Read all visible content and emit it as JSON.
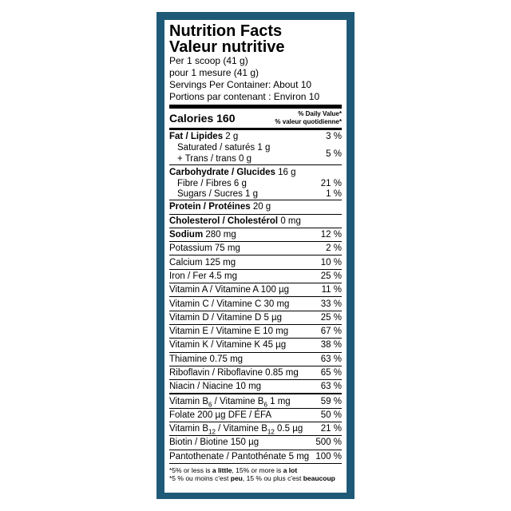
{
  "header": {
    "title_en": "Nutrition Facts",
    "title_fr": "Valeur nutritive",
    "serving_en": "Per 1 scoop (41 g)",
    "serving_fr": "pour 1 mesure (41 g)",
    "servings_en": "Servings Per Container: About 10",
    "servings_fr": "Portions par contenant : Environ 10"
  },
  "calories": {
    "label": "Calories 160",
    "dv_en": "% Daily Value*",
    "dv_fr": "% valeur quotidienne*"
  },
  "fat": {
    "name": "Fat / Lipides",
    "amount": "2 g",
    "dv": "3 %",
    "saturated": "Saturated / saturés 1 g",
    "trans": "+ Trans / trans 0 g",
    "sat_trans_dv": "5 %"
  },
  "carbohydrate": {
    "name": "Carbohydrate / Glucides",
    "amount": "16 g",
    "fibre": "Fibre / Fibres 6 g",
    "fibre_dv": "21 %",
    "sugars": "Sugars / Sucres 1 g",
    "sugars_dv": "1 %"
  },
  "protein": {
    "name": "Protein / Protéines",
    "amount": "20 g"
  },
  "cholesterol": {
    "name": "Cholesterol / Cholestérol",
    "amount": "0 mg"
  },
  "sodium": {
    "name": "Sodium",
    "amount": "280 mg",
    "dv": "12 %"
  },
  "micronutrients": [
    {
      "name": "Potassium 75 mg",
      "dv": "2 %"
    },
    {
      "name": "Calcium 125 mg",
      "dv": "10 %"
    },
    {
      "name": "Iron / Fer 4.5 mg",
      "dv": "25 %"
    },
    {
      "name": "Vitamin A / Vitamine A 100 µg",
      "dv": "11 %"
    },
    {
      "name": "Vitamin C / Vitamine C 30 mg",
      "dv": "33 %"
    },
    {
      "name": "Vitamin D / Vitamine D 5 µg",
      "dv": "25 %"
    },
    {
      "name": "Vitamin E / Vitamine E 10 mg",
      "dv": "67 %"
    },
    {
      "name": "Vitamin K / Vitamine K 45 µg",
      "dv": "38 %"
    },
    {
      "name": "Thiamine 0.75 mg",
      "dv": "63 %"
    },
    {
      "name": "Riboflavin / Riboflavine 0.85 mg",
      "dv": "65 %"
    },
    {
      "name": "Niacin / Niacine 10 mg",
      "dv": "63 %"
    }
  ],
  "b_vitamins": [
    {
      "parts": [
        "Vitamin B",
        "6",
        " / Vitamine B",
        "6",
        " 1 mg"
      ],
      "dv": "59 %"
    },
    {
      "parts": [
        "Folate 200 µg DFE / ÉFA"
      ],
      "dv": "50 %"
    },
    {
      "parts": [
        "Vitamin B",
        "12",
        " / Vitamine B",
        "12",
        " 0.5 µg"
      ],
      "dv": "21 %"
    },
    {
      "parts": [
        "Biotin / Biotine 150 µg"
      ],
      "dv": "500 %"
    },
    {
      "parts": [
        "Pantothenate / Pantothénate 5 mg"
      ],
      "dv": "100 %"
    }
  ],
  "footnote": {
    "en": [
      "*5% or less is ",
      "a little",
      ", 15% or more is ",
      "a lot"
    ],
    "fr": [
      "*5 % ou moins c'est ",
      "peu",
      ", 15 % ou plus c'est ",
      "beaucoup"
    ]
  }
}
